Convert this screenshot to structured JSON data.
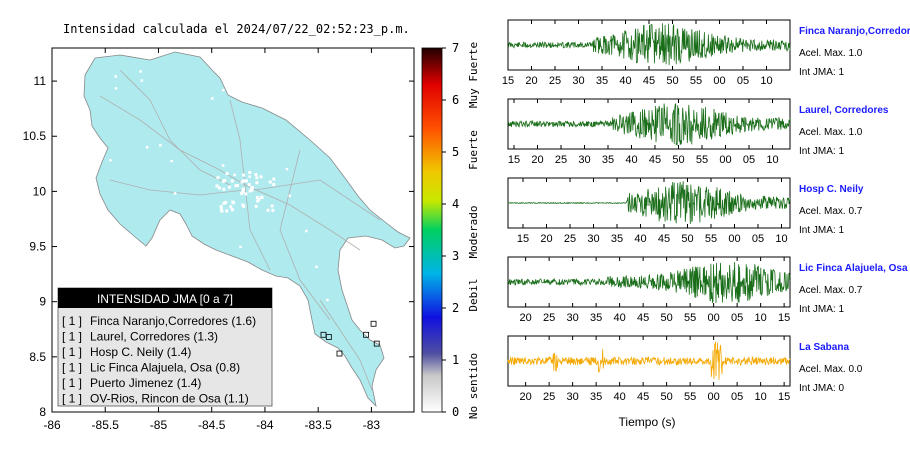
{
  "map": {
    "title": "Intensidad calculada el 2024/07/22_02:52:23_p.m.",
    "x_ticks": [
      "-86",
      "-85.5",
      "-85",
      "-84.5",
      "-84",
      "-83.5",
      "-83"
    ],
    "y_ticks": [
      "8",
      "8.5",
      "9",
      "9.5",
      "10",
      "10.5",
      "11"
    ],
    "land_color": "#aeeaee",
    "legend": {
      "title": "INTENSIDAD JMA [0 a 7]",
      "items": [
        {
          "level": "[ 1 ]",
          "label": "Finca Naranjo,Corredores (1.6)"
        },
        {
          "level": "[ 1 ]",
          "label": "Laurel, Corredores (1.3)"
        },
        {
          "level": "[ 1 ]",
          "label": "Hosp C. Neily (1.4)"
        },
        {
          "level": "[ 1 ]",
          "label": "Lic Finca Alajuela, Osa (0.8)"
        },
        {
          "level": "[ 1 ]",
          "label": "Puerto Jimenez (1.4)"
        },
        {
          "level": "[ 1 ]",
          "label": "OV-Rios, Rincon de Osa (1.1)"
        }
      ]
    }
  },
  "colorbar": {
    "ticks": [
      "0",
      "1",
      "2",
      "3",
      "4",
      "5",
      "6",
      "7"
    ],
    "labels": [
      "No sentido",
      "Debil",
      "Moderado",
      "Fuerte",
      "Muy Fuerte"
    ]
  },
  "waveforms": {
    "xlabel": "Tiempo (s)",
    "acel_label": "Acel. Max.",
    "int_label": "Int JMA:",
    "panels": [
      {
        "station": "Finca Naranjo,Corredor",
        "acel": "1.0",
        "int": "1",
        "color": "#1a6e1a",
        "ticks": [
          "15",
          "20",
          "25",
          "30",
          "35",
          "40",
          "45",
          "50",
          "55",
          "00",
          "05",
          "10"
        ],
        "start": 15,
        "onset": 0.3,
        "peak": 0.55
      },
      {
        "station": "Laurel, Corredores",
        "acel": "1.0",
        "int": "1",
        "color": "#1a6e1a",
        "ticks": [
          "15",
          "20",
          "25",
          "30",
          "35",
          "40",
          "45",
          "50",
          "55",
          "00",
          "05",
          "10"
        ],
        "start": 14,
        "onset": 0.37,
        "peak": 0.6
      },
      {
        "station": "Hosp C. Neily",
        "acel": "0.7",
        "int": "1",
        "color": "#1a6e1a",
        "ticks": [
          "15",
          "20",
          "25",
          "30",
          "35",
          "40",
          "45",
          "50",
          "55",
          "00",
          "05",
          "10"
        ],
        "start": 11,
        "onset": 0.42,
        "peak": 0.62
      },
      {
        "station": "Lic Finca Alajuela, Osa",
        "acel": "0.7",
        "int": "1",
        "color": "#1a6e1a",
        "ticks": [
          "20",
          "25",
          "30",
          "35",
          "40",
          "45",
          "50",
          "55",
          "00",
          "05",
          "10",
          "15"
        ],
        "start": 16,
        "onset": 0.35,
        "peak": 0.78
      },
      {
        "station": "La Sabana",
        "acel": "0.0",
        "int": "0",
        "color": "#f5a800",
        "ticks": [
          "20",
          "25",
          "30",
          "35",
          "40",
          "45",
          "50",
          "55",
          "00",
          "05",
          "10",
          "15"
        ],
        "start": 16,
        "onset": 0.0,
        "peak": 0.74
      }
    ]
  },
  "chart_data": [
    {
      "type": "scatter",
      "title": "Intensidad calculada el 2024/07/22_02:52:23_p.m.",
      "xlabel": "",
      "ylabel": "",
      "xlim": [
        -86,
        -82.6
      ],
      "ylim": [
        8,
        11.3
      ],
      "series": [
        {
          "name": "INTENSIDAD JMA [0 a 7]",
          "points": [
            {
              "x": -82.98,
              "y": 8.8,
              "label": "Finca Naranjo,Corredores",
              "value": 1.6
            },
            {
              "x": -83.05,
              "y": 8.7,
              "label": "Laurel, Corredores",
              "value": 1.3
            },
            {
              "x": -82.95,
              "y": 8.62,
              "label": "Hosp C. Neily",
              "value": 1.4
            },
            {
              "x": -83.4,
              "y": 8.68,
              "label": "Lic Finca Alajuela, Osa",
              "value": 0.8
            },
            {
              "x": -83.3,
              "y": 8.53,
              "label": "Puerto Jimenez",
              "value": 1.4
            },
            {
              "x": -83.45,
              "y": 8.7,
              "label": "OV-Rios, Rincon de Osa",
              "value": 1.1
            }
          ]
        }
      ]
    },
    {
      "type": "line",
      "title": "Finca Naranjo,Corredor",
      "xlabel": "Tiempo (s)",
      "ylabel": "",
      "series": [
        {
          "name": "Finca Naranjo,Corredor",
          "peak": 1.0
        }
      ]
    },
    {
      "type": "line",
      "title": "Laurel, Corredores",
      "xlabel": "Tiempo (s)",
      "ylabel": "",
      "series": [
        {
          "name": "Laurel, Corredores",
          "peak": 1.0
        }
      ]
    },
    {
      "type": "line",
      "title": "Hosp C. Neily",
      "xlabel": "Tiempo (s)",
      "ylabel": "",
      "series": [
        {
          "name": "Hosp C. Neily",
          "peak": 0.7
        }
      ]
    },
    {
      "type": "line",
      "title": "Lic Finca Alajuela, Osa",
      "xlabel": "Tiempo (s)",
      "ylabel": "",
      "series": [
        {
          "name": "Lic Finca Alajuela, Osa",
          "peak": 0.7
        }
      ]
    },
    {
      "type": "line",
      "title": "La Sabana",
      "xlabel": "Tiempo (s)",
      "ylabel": "",
      "series": [
        {
          "name": "La Sabana",
          "peak": 0.0
        }
      ]
    }
  ]
}
